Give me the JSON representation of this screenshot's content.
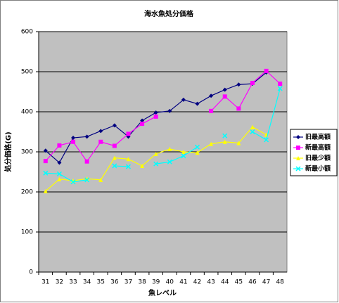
{
  "chart_data": {
    "type": "line",
    "title": "海水魚処分価格",
    "x_label": "魚レベル",
    "y_label": "処分価格(G)",
    "categories": [
      "31",
      "32",
      "33",
      "34",
      "35",
      "36",
      "37",
      "38",
      "39",
      "40",
      "41",
      "42",
      "43",
      "44",
      "45",
      "46",
      "47",
      "48"
    ],
    "ylim": [
      0,
      600
    ],
    "yticks": [
      0,
      100,
      200,
      300,
      400,
      500,
      600
    ],
    "grid": true,
    "legend": "right",
    "series": [
      {
        "name": "旧最高額",
        "color": "#000080",
        "marker": "diamond",
        "values": [
          303,
          273,
          335,
          338,
          352,
          366,
          338,
          378,
          398,
          402,
          430,
          420,
          440,
          455,
          468,
          470,
          498,
          null
        ]
      },
      {
        "name": "新最高額",
        "color": "#ff00ff",
        "marker": "square",
        "values": [
          277,
          316,
          325,
          276,
          325,
          315,
          345,
          370,
          388,
          null,
          null,
          null,
          402,
          438,
          408,
          472,
          502,
          470
        ]
      },
      {
        "name": "旧最少額",
        "color": "#ffff00",
        "marker": "triangle",
        "values": [
          202,
          232,
          228,
          233,
          230,
          285,
          282,
          265,
          295,
          307,
          300,
          298,
          320,
          325,
          322,
          362,
          343,
          null
        ]
      },
      {
        "name": "新最小額",
        "color": "#00ffff",
        "marker": "x",
        "values": [
          247,
          245,
          225,
          230,
          null,
          265,
          263,
          null,
          270,
          275,
          290,
          312,
          null,
          340,
          null,
          350,
          330,
          458
        ]
      }
    ]
  }
}
